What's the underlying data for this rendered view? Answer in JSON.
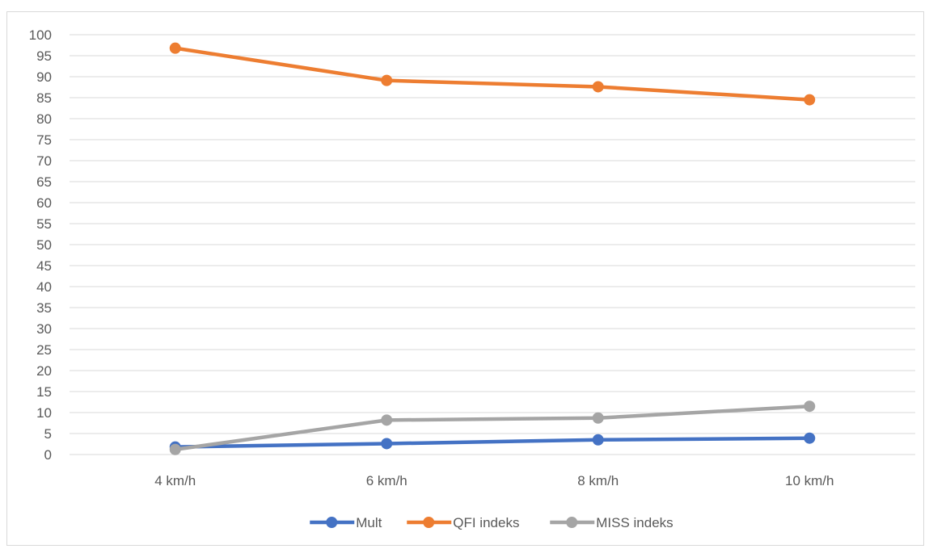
{
  "chart_data": {
    "type": "line",
    "title": "",
    "xlabel": "",
    "ylabel": "",
    "categories": [
      "4 km/h",
      "6 km/h",
      "8 km/h",
      "10 km/h"
    ],
    "ylim": [
      0,
      100
    ],
    "ytick_step": 5,
    "grid": true,
    "legend_position": "bottom",
    "series": [
      {
        "name": "Mult",
        "values": [
          1.8,
          2.6,
          3.5,
          3.9
        ],
        "color": "#4472c4"
      },
      {
        "name": "QFI indeks",
        "values": [
          96.8,
          89.1,
          87.6,
          84.5
        ],
        "color": "#ed7d31"
      },
      {
        "name": "MISS indeks",
        "values": [
          1.2,
          8.2,
          8.7,
          11.5
        ],
        "color": "#a5a5a5"
      }
    ]
  }
}
